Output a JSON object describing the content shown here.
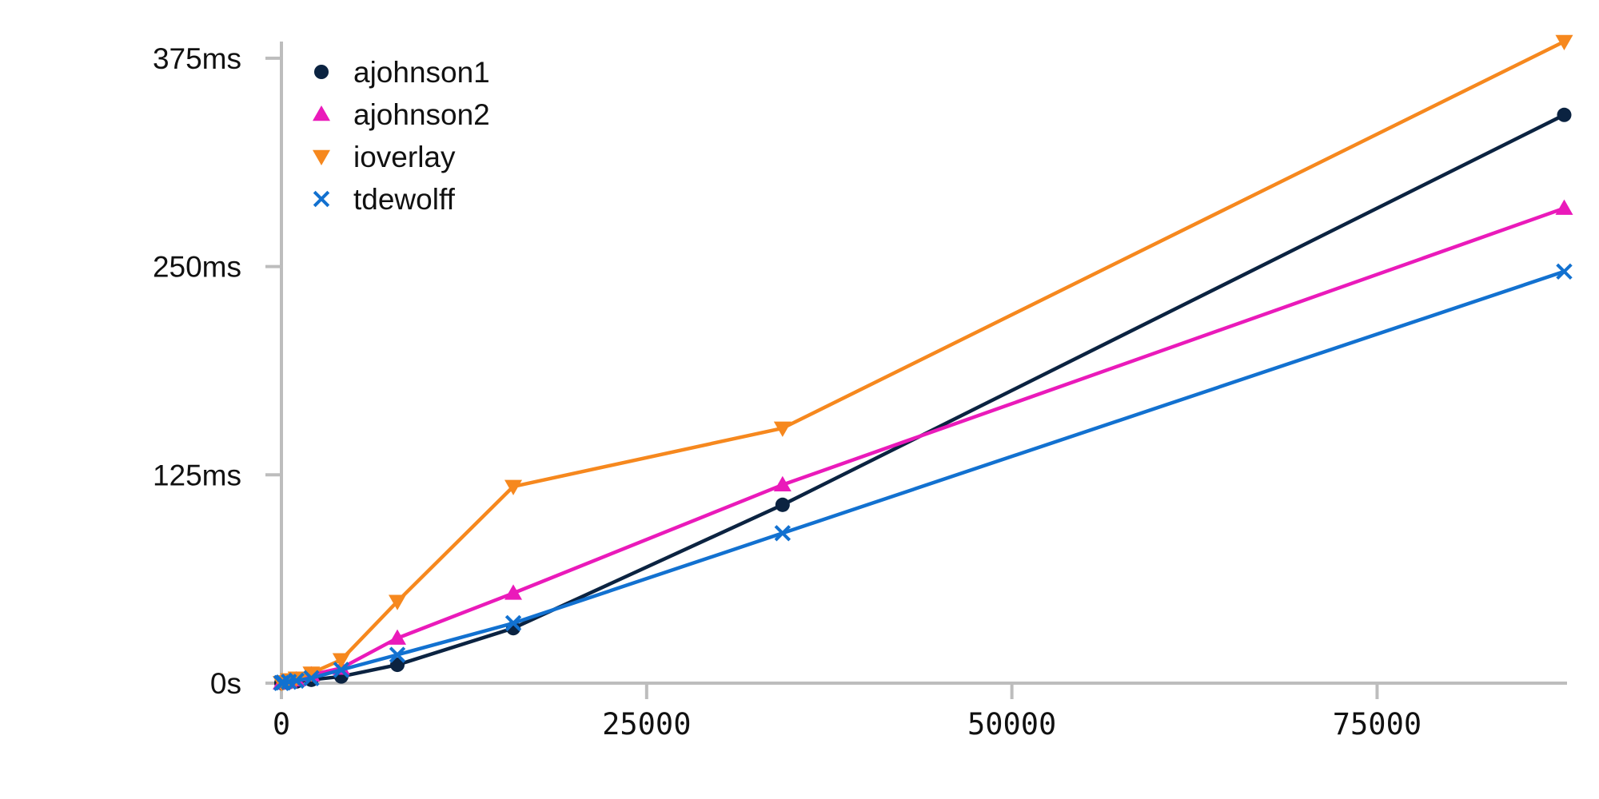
{
  "chart_data": {
    "type": "line",
    "title": "",
    "xlabel": "",
    "ylabel": "",
    "xlim": [
      0,
      88000
    ],
    "ylim": [
      0,
      385
    ],
    "x_ticks": [
      {
        "value": 0,
        "label": "0"
      },
      {
        "value": 25000,
        "label": "25000"
      },
      {
        "value": 50000,
        "label": "50000"
      },
      {
        "value": 75000,
        "label": "75000"
      }
    ],
    "y_ticks": [
      {
        "value": 0,
        "label": "0s"
      },
      {
        "value": 125,
        "label": "125ms"
      },
      {
        "value": 250,
        "label": "250ms"
      },
      {
        "value": 375,
        "label": "375ms"
      }
    ],
    "grid": false,
    "legend_position": "top-left",
    "x": [
      0,
      128,
      512,
      1024,
      2048,
      4096,
      7936,
      15872,
      34304,
      87808
    ],
    "series": [
      {
        "name": "ajohnson1",
        "marker": "circle",
        "color": "#0b2341",
        "values": [
          0.1,
          0.3,
          0.6,
          1,
          2,
          4,
          11,
          33,
          107,
          341
        ]
      },
      {
        "name": "ajohnson2",
        "marker": "triangle-up",
        "color": "#ea1aba",
        "values": [
          0.2,
          0.5,
          1,
          2,
          5,
          9,
          27,
          54,
          119,
          285
        ]
      },
      {
        "name": "ioverlay",
        "marker": "triangle-down",
        "color": "#f6881e",
        "values": [
          0.3,
          0.8,
          2,
          3,
          6,
          14,
          49,
          118,
          153,
          385
        ]
      },
      {
        "name": "tdewolff",
        "marker": "x",
        "color": "#1271d0",
        "values": [
          0.1,
          0.4,
          0.8,
          1.5,
          3,
          8,
          17,
          36,
          90,
          247
        ]
      }
    ]
  }
}
